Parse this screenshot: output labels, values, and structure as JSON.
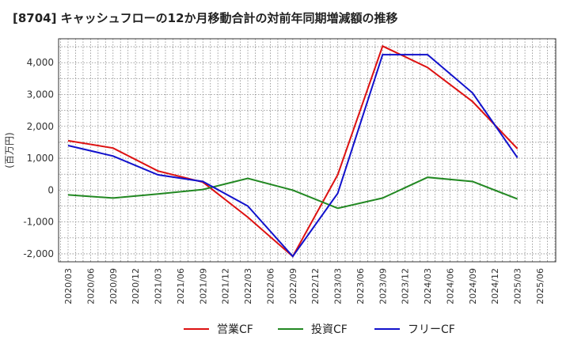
{
  "chart_data": {
    "type": "line",
    "title": "[8704]  キャッシュフローの12か月移動合計の対前年同期増減額の推移",
    "ylabel": "(百万円)",
    "xlabel": "",
    "ylim": [
      -2250,
      4750
    ],
    "yticks": [
      -2000,
      -1000,
      0,
      1000,
      2000,
      3000,
      4000
    ],
    "ytick_labels": [
      "-2,000",
      "-1,000",
      "0",
      "1,000",
      "2,000",
      "3,000",
      "4,000"
    ],
    "categories": [
      "2020/03",
      "2020/06",
      "2020/09",
      "2020/12",
      "2021/03",
      "2021/06",
      "2021/09",
      "2021/12",
      "2022/03",
      "2022/06",
      "2022/09",
      "2022/12",
      "2023/03",
      "2023/06",
      "2023/09",
      "2023/12",
      "2024/03",
      "2024/06",
      "2024/09",
      "2024/12",
      "2025/03",
      "2025/06"
    ],
    "grid": true,
    "legend_position": "bottom",
    "series": [
      {
        "name": "営業CF",
        "color": "#dd1111",
        "values": [
          1550,
          null,
          1320,
          null,
          600,
          null,
          250,
          null,
          -850,
          null,
          -2080,
          null,
          480,
          null,
          4520,
          null,
          3850,
          null,
          2780,
          null,
          1300,
          null
        ]
      },
      {
        "name": "投資CF",
        "color": "#228822",
        "values": [
          -150,
          null,
          -250,
          null,
          -120,
          null,
          20,
          null,
          370,
          null,
          0,
          null,
          -570,
          null,
          -250,
          null,
          400,
          null,
          270,
          null,
          -280,
          null
        ]
      },
      {
        "name": "フリーCF",
        "color": "#1111cc",
        "values": [
          1400,
          null,
          1070,
          null,
          480,
          null,
          270,
          null,
          -500,
          null,
          -2080,
          null,
          -100,
          null,
          4250,
          null,
          4250,
          null,
          3050,
          null,
          1020,
          null
        ]
      }
    ]
  }
}
